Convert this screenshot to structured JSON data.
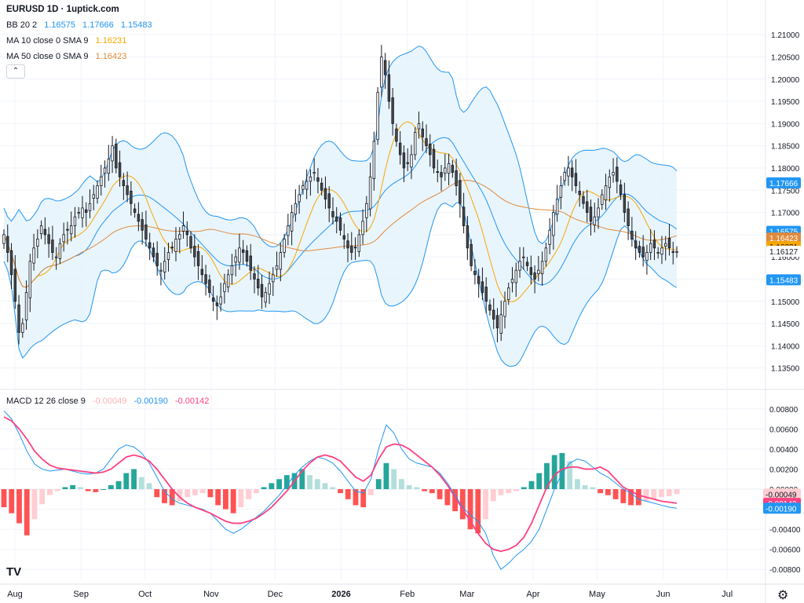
{
  "header": {
    "title": "EURUSD 1D · 1uptick.com",
    "bb": {
      "label": "BB 20 2",
      "v1": "1.16575",
      "v2": "1.17666",
      "v3": "1.15483"
    },
    "ma10": {
      "label": "MA 10 close 0 SMA 9",
      "value": "1.16231"
    },
    "ma50": {
      "label": "MA 50 close 0 SMA 9",
      "value": "1.16423"
    },
    "macd": {
      "label": "MACD 12 26 close 9",
      "v1": "-0.00049",
      "v2": "-0.00190",
      "v3": "-0.00142"
    }
  },
  "icons": {
    "collapse": "chevron-up-icon",
    "logo": "tradingview-logo-icon",
    "settings": "gear-icon"
  },
  "logo_text": "TV",
  "colors": {
    "bb": "#2196f3",
    "bb_fill": "#e3f2fd",
    "ma10": "#f7a600",
    "ma50": "#e08a3c",
    "macd_line": "#2196f3",
    "signal_line": "#ff4081",
    "hist_up_strong": "#26a69a",
    "hist_up_weak": "#b2dfdb",
    "hist_down_strong": "#ff5252",
    "hist_down_weak": "#ffcdd2"
  },
  "chart_data": {
    "type": "candlestick",
    "price_axis": {
      "ticks": [
        "1.21000",
        "1.20500",
        "1.20000",
        "1.19500",
        "1.19000",
        "1.18500",
        "1.18000",
        "1.17500",
        "1.17000",
        "1.16500",
        "1.16000",
        "1.15500",
        "1.15000",
        "1.14500",
        "1.14000",
        "1.13500"
      ],
      "range": [
        1.133,
        1.2125
      ]
    },
    "macd_axis": {
      "ticks": [
        "0.00800",
        "0.00600",
        "0.00400",
        "0.00200",
        "0.00000",
        "-0.00200",
        "-0.00400",
        "-0.00600",
        "-0.00800"
      ],
      "range": [
        -0.009,
        0.009
      ]
    },
    "x_labels": [
      {
        "label": "Aug",
        "date": "2025-08-01"
      },
      {
        "label": "Sep",
        "date": "2025-09-01"
      },
      {
        "label": "Oct",
        "date": "2025-10-01"
      },
      {
        "label": "Nov",
        "date": "2025-11-01"
      },
      {
        "label": "Dec",
        "date": "2025-12-01"
      },
      {
        "label": "2026",
        "date": "2026-01-01",
        "bold": true
      },
      {
        "label": "Feb",
        "date": "2026-02-01"
      },
      {
        "label": "Mar",
        "date": "2026-03-01"
      },
      {
        "label": "Apr",
        "date": "2026-04-01"
      },
      {
        "label": "May",
        "date": "2026-05-01"
      },
      {
        "label": "Jun",
        "date": "2026-06-01"
      },
      {
        "label": "Jul",
        "date": "2026-07-01"
      }
    ],
    "date_range": [
      "2025-07-25",
      "2026-07-19"
    ],
    "price_tags": [
      {
        "value": 1.17666,
        "label": "1.17666",
        "bg": "#2196f3",
        "fg": "#ffffff"
      },
      {
        "value": 1.16575,
        "label": "1.16575",
        "bg": "#2196f3",
        "fg": "#ffffff"
      },
      {
        "value": 1.16423,
        "label": "1.16423",
        "bg": "#e08a3c",
        "fg": "#ffffff"
      },
      {
        "value": 1.16231,
        "label": "1.16231",
        "bg": "#f7a600",
        "fg": "#131722"
      },
      {
        "value": 1.16127,
        "label": "1.16127",
        "bg": "#ffffff",
        "fg": "#131722"
      },
      {
        "value": 1.15483,
        "label": "1.15483",
        "bg": "#2196f3",
        "fg": "#ffffff"
      }
    ],
    "macd_tags": [
      {
        "value": -0.00049,
        "label": "-0.00049",
        "bg": "#ffcdd2",
        "fg": "#131722"
      },
      {
        "value": -0.00142,
        "label": "-0.00142",
        "bg": "#ff4081",
        "fg": "#ffffff"
      },
      {
        "value": -0.0019,
        "label": "-0.00190",
        "bg": "#2196f3",
        "fg": "#ffffff"
      }
    ],
    "closes": [
      1.165,
      1.161,
      1.156,
      1.15,
      1.143,
      1.145,
      1.152,
      1.159,
      1.162,
      1.164,
      1.167,
      1.165,
      1.163,
      1.161,
      1.16,
      1.163,
      1.165,
      1.166,
      1.167,
      1.169,
      1.17,
      1.171,
      1.17,
      1.172,
      1.174,
      1.176,
      1.178,
      1.18,
      1.182,
      1.185,
      1.18,
      1.178,
      1.176,
      1.174,
      1.172,
      1.17,
      1.168,
      1.166,
      1.164,
      1.162,
      1.16,
      1.158,
      1.157,
      1.159,
      1.161,
      1.162,
      1.164,
      1.165,
      1.167,
      1.165,
      1.162,
      1.16,
      1.158,
      1.156,
      1.154,
      1.152,
      1.15,
      1.149,
      1.151,
      1.154,
      1.156,
      1.158,
      1.16,
      1.162,
      1.161,
      1.159,
      1.157,
      1.155,
      1.153,
      1.151,
      1.152,
      1.154,
      1.156,
      1.158,
      1.161,
      1.164,
      1.167,
      1.17,
      1.172,
      1.174,
      1.176,
      1.177,
      1.178,
      1.179,
      1.177,
      1.175,
      1.173,
      1.171,
      1.169,
      1.168,
      1.166,
      1.164,
      1.162,
      1.161,
      1.162,
      1.165,
      1.168,
      1.172,
      1.178,
      1.186,
      1.197,
      1.205,
      1.201,
      1.195,
      1.19,
      1.186,
      1.183,
      1.18,
      1.181,
      1.183,
      1.188,
      1.19,
      1.187,
      1.185,
      1.183,
      1.18,
      1.179,
      1.178,
      1.18,
      1.181,
      1.179,
      1.176,
      1.172,
      1.167,
      1.162,
      1.158,
      1.156,
      1.154,
      1.152,
      1.15,
      1.148,
      1.146,
      1.144,
      1.147,
      1.15,
      1.153,
      1.155,
      1.157,
      1.159,
      1.16,
      1.158,
      1.156,
      1.155,
      1.157,
      1.159,
      1.162,
      1.166,
      1.17,
      1.173,
      1.176,
      1.179,
      1.18,
      1.178,
      1.176,
      1.174,
      1.172,
      1.17,
      1.168,
      1.169,
      1.171,
      1.174,
      1.176,
      1.178,
      1.179,
      1.177,
      1.174,
      1.17,
      1.167,
      1.164,
      1.162,
      1.161,
      1.16,
      1.161,
      1.163,
      1.162,
      1.161,
      1.162,
      1.163,
      1.162,
      1.161,
      1.1612
    ],
    "macd_line": [
      0.0078,
      0.007,
      0.0055,
      0.0038,
      0.0025,
      0.002,
      0.0018,
      0.0019,
      0.002,
      0.0018,
      0.0016,
      0.0015,
      0.0016,
      0.002,
      0.003,
      0.004,
      0.0044,
      0.0042,
      0.0036,
      0.0026,
      0.0012,
      -0.0002,
      -0.001,
      -0.0014,
      -0.0016,
      -0.0018,
      -0.002,
      -0.0024,
      -0.0032,
      -0.004,
      -0.0044,
      -0.004,
      -0.0034,
      -0.0028,
      -0.0022,
      -0.0014,
      -0.0006,
      0.0004,
      0.0014,
      0.0022,
      0.0028,
      0.0032,
      0.003,
      0.0026,
      0.0018,
      0.0008,
      -0.0002,
      -0.0004,
      0.001,
      0.004,
      0.0064,
      0.0056,
      0.004,
      0.003,
      0.0026,
      0.0024,
      0.0022,
      0.0016,
      0.0006,
      -0.0006,
      -0.0018,
      -0.0026,
      -0.0032,
      -0.0044,
      -0.0066,
      -0.008,
      -0.0074,
      -0.0066,
      -0.006,
      -0.0052,
      -0.004,
      -0.002,
      0.0,
      0.0016,
      0.0026,
      0.003,
      0.0028,
      0.0022,
      0.0016,
      0.0012,
      0.0006,
      0.0,
      -0.0004,
      -0.001,
      -0.0012,
      -0.0014,
      -0.0016,
      -0.0018,
      -0.0019
    ],
    "signal_line": [
      0.0072,
      0.0068,
      0.006,
      0.005,
      0.0038,
      0.003,
      0.0024,
      0.0021,
      0.002,
      0.0019,
      0.0018,
      0.0017,
      0.0016,
      0.0017,
      0.002,
      0.0026,
      0.0032,
      0.0034,
      0.0032,
      0.0028,
      0.002,
      0.001,
      0.0,
      -0.0008,
      -0.0014,
      -0.0018,
      -0.0021,
      -0.0024,
      -0.0028,
      -0.0032,
      -0.0034,
      -0.0034,
      -0.0032,
      -0.0029,
      -0.0024,
      -0.0018,
      -0.001,
      -0.0002,
      0.0008,
      0.0018,
      0.0026,
      0.0032,
      0.0034,
      0.0032,
      0.0028,
      0.002,
      0.0012,
      0.0008,
      0.0014,
      0.003,
      0.0042,
      0.0045,
      0.0044,
      0.004,
      0.0034,
      0.0028,
      0.0022,
      0.0014,
      0.0004,
      -0.0008,
      -0.002,
      -0.0032,
      -0.0044,
      -0.0054,
      -0.006,
      -0.0062,
      -0.006,
      -0.0056,
      -0.0048,
      -0.0034,
      -0.0016,
      0.0002,
      0.0014,
      0.002,
      0.0022,
      0.0022,
      0.002,
      0.002,
      0.0022,
      0.0018,
      0.001,
      0.0002,
      -0.0002,
      -0.0006,
      -0.0008,
      -0.001,
      -0.0012,
      -0.0013,
      -0.0014
    ],
    "macd_histogram": [
      -0.0018,
      -0.0024,
      -0.0034,
      -0.0046,
      -0.003,
      -0.0015,
      -0.0006,
      -0.0002,
      0.0002,
      0.0004,
      0.0002,
      -0.0002,
      -0.0003,
      0.0,
      0.0004,
      0.0008,
      0.0016,
      0.002,
      0.0012,
      0.0006,
      -0.0008,
      -0.0014,
      -0.0016,
      -0.0012,
      -0.0008,
      -0.0006,
      -0.0004,
      -0.0008,
      -0.0016,
      -0.002,
      -0.0024,
      -0.0018,
      -0.001,
      -0.0004,
      0.0002,
      0.0006,
      0.001,
      0.0014,
      0.0016,
      0.002,
      0.0014,
      0.001,
      0.0006,
      0.0002,
      -0.0004,
      -0.001,
      -0.0016,
      -0.0018,
      -0.0006,
      0.001,
      0.0026,
      0.002,
      0.001,
      0.0004,
      0.0002,
      -0.0002,
      -0.0004,
      -0.001,
      -0.0016,
      -0.0022,
      -0.003,
      -0.004,
      -0.0044,
      -0.003,
      -0.0012,
      -0.0006,
      -0.0004,
      -0.0002,
      0.0002,
      0.0008,
      0.0016,
      0.0026,
      0.0034,
      0.0036,
      0.0028,
      0.001,
      0.0004,
      0.0002,
      -0.0004,
      -0.0006,
      -0.001,
      -0.0014,
      -0.0016,
      -0.0016,
      -0.0012,
      -0.001,
      -0.0008,
      -0.0007,
      -0.0005
    ]
  }
}
